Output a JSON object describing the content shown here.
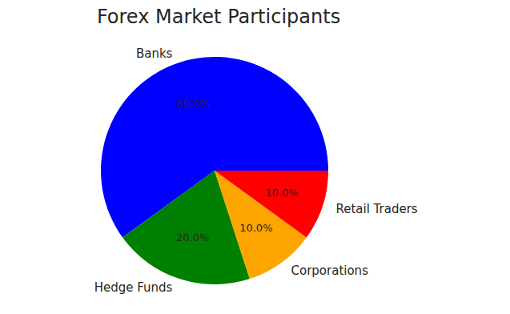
{
  "chart_data": {
    "type": "pie",
    "title": "Forex Market Participants",
    "categories": [
      "Banks",
      "Hedge Funds",
      "Corporations",
      "Retail Traders"
    ],
    "values": [
      60,
      20,
      10,
      10
    ],
    "value_labels": [
      "60.0%",
      "20.0%",
      "10.0%",
      "10.0%"
    ],
    "colors": [
      "#0000ff",
      "#008000",
      "#ffa500",
      "#ff0000"
    ],
    "data_labels": true
  }
}
